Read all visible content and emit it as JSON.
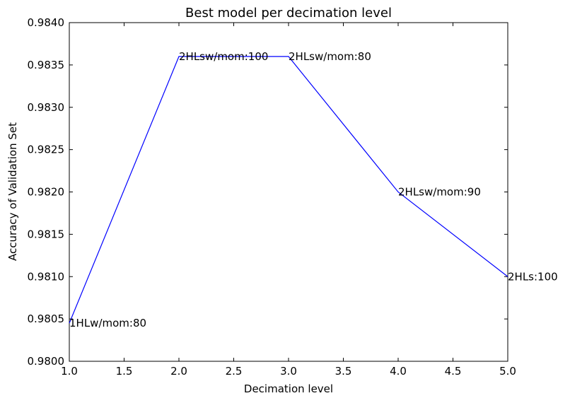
{
  "chart_data": {
    "type": "line",
    "title": "Best model per decimation level",
    "xlabel": "Decimation level",
    "ylabel": "Accuracy of Validation Set",
    "xlim": [
      1.0,
      5.0
    ],
    "ylim": [
      0.98,
      0.984
    ],
    "grid": false,
    "legend": "none",
    "x_ticks": [
      "1.0",
      "1.5",
      "2.0",
      "2.5",
      "3.0",
      "3.5",
      "4.0",
      "4.5",
      "5.0"
    ],
    "y_ticks": [
      "0.9800",
      "0.9805",
      "0.9810",
      "0.9815",
      "0.9820",
      "0.9825",
      "0.9830",
      "0.9835",
      "0.9840"
    ],
    "series": [
      {
        "color": "#0000ff",
        "x": [
          1.0,
          2.0,
          3.0,
          4.0,
          5.0
        ],
        "values": [
          0.98045,
          0.9836,
          0.9836,
          0.982,
          0.981
        ],
        "point_labels": [
          "1HLw/mom:80",
          "2HLsw/mom:100",
          "2HLsw/mom:80",
          "2HLsw/mom:90",
          "2HLs:100"
        ]
      }
    ]
  }
}
